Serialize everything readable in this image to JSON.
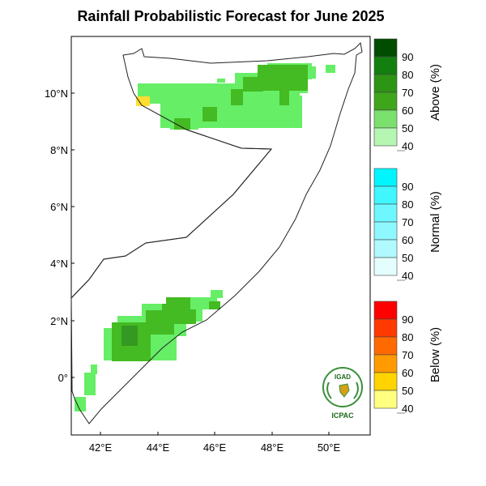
{
  "title": "Rainfall Probabilistic Forecast for June 2025",
  "axes": {
    "lat_labels": [
      "10°N",
      "8°N",
      "6°N",
      "4°N",
      "2°N",
      "0°"
    ],
    "lon_labels": [
      "42°E",
      "44°E",
      "46°E",
      "48°E",
      "50°E"
    ]
  },
  "colorbars": [
    {
      "title": "Above (%)",
      "ticks": [
        "90",
        "80",
        "70",
        "60",
        "50",
        "40"
      ],
      "colors": [
        "#004d00",
        "#137f0f",
        "#2d9414",
        "#3fa61b",
        "#7be06e",
        "#b4f6b2"
      ]
    },
    {
      "title": "Normal (%)",
      "ticks": [
        "90",
        "80",
        "70",
        "60",
        "50",
        "40"
      ],
      "colors": [
        "#00f5ff",
        "#40f6ff",
        "#6ef7ff",
        "#8ef8ff",
        "#b0faff",
        "#e4fefe"
      ]
    },
    {
      "title": "Below (%)",
      "ticks": [
        "90",
        "80",
        "70",
        "60",
        "50",
        "40"
      ],
      "colors": [
        "#ff0000",
        "#ff3a00",
        "#ff6a00",
        "#ff9a00",
        "#ffd400",
        "#ffff80"
      ]
    }
  ],
  "colors": {
    "above_40": "#b4f6b2",
    "above_50": "#66ee66",
    "above_60": "#44bb22",
    "above_70": "#339922",
    "below_40": "#ffdd33"
  },
  "logo": {
    "top_text": "IGAD",
    "bottom_text": "ICPAC"
  }
}
